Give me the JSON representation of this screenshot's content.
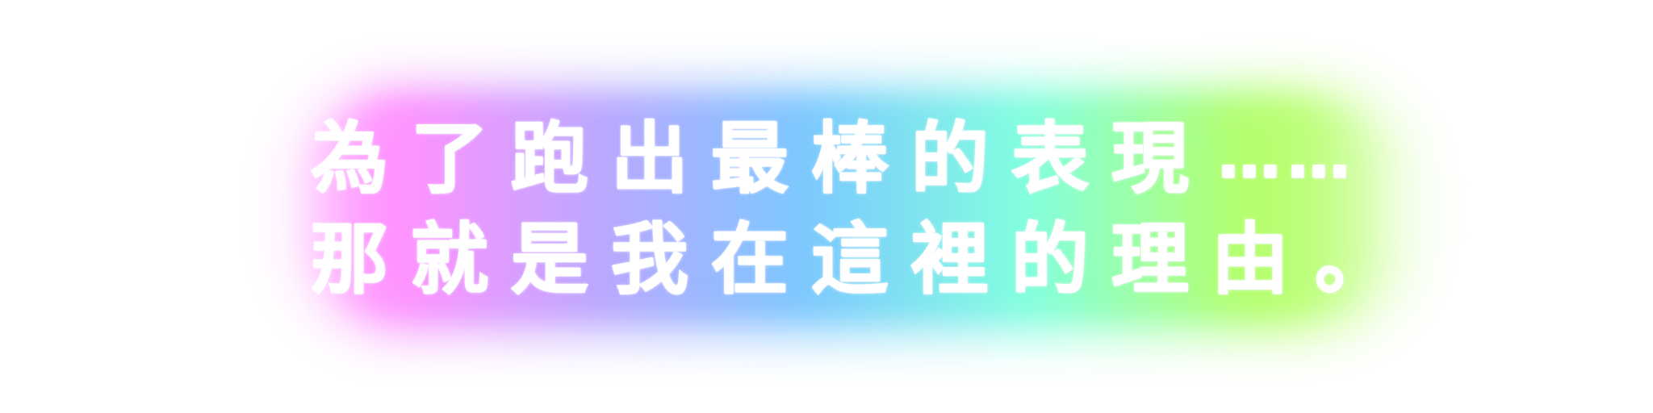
{
  "colors": {
    "background": "#ffffff",
    "text": "#ffffff",
    "glow_magenta": "#ff93ff",
    "glow_violet": "#b9a8ff",
    "glow_blue": "#7cc8ff",
    "glow_cyan": "#82ffe0",
    "glow_green": "#b6ff6d"
  },
  "caption": {
    "line1_main": "為了跑出最棒的表現",
    "line1_ellipsis": "……",
    "line2_main": "那就是我在這裡的理由",
    "line2_period": "。"
  }
}
